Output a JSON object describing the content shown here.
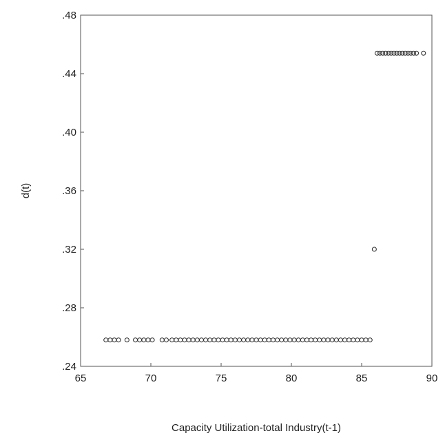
{
  "chart_data": {
    "type": "scatter",
    "title": "",
    "xlabel": "Capacity Utilization-total Industry(t-1)",
    "ylabel": "d(t)",
    "xlim": [
      65,
      90
    ],
    "ylim": [
      0.24,
      0.48
    ],
    "xticks": [
      {
        "value": 65,
        "label": "65"
      },
      {
        "value": 70,
        "label": "70"
      },
      {
        "value": 75,
        "label": "75"
      },
      {
        "value": 80,
        "label": "80"
      },
      {
        "value": 85,
        "label": "85"
      },
      {
        "value": 90,
        "label": "90"
      }
    ],
    "yticks": [
      {
        "value": 0.24,
        "label": ".24"
      },
      {
        "value": 0.28,
        "label": ".28"
      },
      {
        "value": 0.32,
        "label": ".32"
      },
      {
        "value": 0.36,
        "label": ".36"
      },
      {
        "value": 0.4,
        "label": ".40"
      },
      {
        "value": 0.44,
        "label": ".44"
      },
      {
        "value": 0.48,
        "label": ".48"
      }
    ],
    "grid": false,
    "legend": "none",
    "marker_color": "#333333",
    "series": [
      {
        "values": [
          {
            "x": 66.8,
            "y": 0.258
          },
          {
            "x": 67.1,
            "y": 0.258
          },
          {
            "x": 67.4,
            "y": 0.258
          },
          {
            "x": 67.7,
            "y": 0.258
          },
          {
            "x": 68.3,
            "y": 0.258
          },
          {
            "x": 68.9,
            "y": 0.258
          },
          {
            "x": 69.2,
            "y": 0.258
          },
          {
            "x": 69.5,
            "y": 0.258
          },
          {
            "x": 69.8,
            "y": 0.258
          },
          {
            "x": 70.1,
            "y": 0.258
          },
          {
            "x": 70.8,
            "y": 0.258
          },
          {
            "x": 71.1,
            "y": 0.258
          },
          {
            "x": 71.5,
            "y": 0.258
          },
          {
            "x": 71.8,
            "y": 0.258
          },
          {
            "x": 72.1,
            "y": 0.258
          },
          {
            "x": 72.4,
            "y": 0.258
          },
          {
            "x": 72.7,
            "y": 0.258
          },
          {
            "x": 73.0,
            "y": 0.258
          },
          {
            "x": 73.3,
            "y": 0.258
          },
          {
            "x": 73.6,
            "y": 0.258
          },
          {
            "x": 73.9,
            "y": 0.258
          },
          {
            "x": 74.2,
            "y": 0.258
          },
          {
            "x": 74.5,
            "y": 0.258
          },
          {
            "x": 74.8,
            "y": 0.258
          },
          {
            "x": 75.1,
            "y": 0.258
          },
          {
            "x": 75.4,
            "y": 0.258
          },
          {
            "x": 75.7,
            "y": 0.258
          },
          {
            "x": 76.0,
            "y": 0.258
          },
          {
            "x": 76.3,
            "y": 0.258
          },
          {
            "x": 76.6,
            "y": 0.258
          },
          {
            "x": 76.9,
            "y": 0.258
          },
          {
            "x": 77.2,
            "y": 0.258
          },
          {
            "x": 77.5,
            "y": 0.258
          },
          {
            "x": 77.8,
            "y": 0.258
          },
          {
            "x": 78.1,
            "y": 0.258
          },
          {
            "x": 78.4,
            "y": 0.258
          },
          {
            "x": 78.7,
            "y": 0.258
          },
          {
            "x": 79.0,
            "y": 0.258
          },
          {
            "x": 79.3,
            "y": 0.258
          },
          {
            "x": 79.6,
            "y": 0.258
          },
          {
            "x": 79.9,
            "y": 0.258
          },
          {
            "x": 80.2,
            "y": 0.258
          },
          {
            "x": 80.5,
            "y": 0.258
          },
          {
            "x": 80.8,
            "y": 0.258
          },
          {
            "x": 81.1,
            "y": 0.258
          },
          {
            "x": 81.4,
            "y": 0.258
          },
          {
            "x": 81.7,
            "y": 0.258
          },
          {
            "x": 82.0,
            "y": 0.258
          },
          {
            "x": 82.3,
            "y": 0.258
          },
          {
            "x": 82.6,
            "y": 0.258
          },
          {
            "x": 82.9,
            "y": 0.258
          },
          {
            "x": 83.2,
            "y": 0.258
          },
          {
            "x": 83.5,
            "y": 0.258
          },
          {
            "x": 83.8,
            "y": 0.258
          },
          {
            "x": 84.1,
            "y": 0.258
          },
          {
            "x": 84.4,
            "y": 0.258
          },
          {
            "x": 84.7,
            "y": 0.258
          },
          {
            "x": 85.0,
            "y": 0.258
          },
          {
            "x": 85.3,
            "y": 0.258
          },
          {
            "x": 85.6,
            "y": 0.258
          },
          {
            "x": 85.9,
            "y": 0.32
          },
          {
            "x": 86.1,
            "y": 0.454
          },
          {
            "x": 86.3,
            "y": 0.454
          },
          {
            "x": 86.5,
            "y": 0.454
          },
          {
            "x": 86.7,
            "y": 0.454
          },
          {
            "x": 86.9,
            "y": 0.454
          },
          {
            "x": 87.1,
            "y": 0.454
          },
          {
            "x": 87.3,
            "y": 0.454
          },
          {
            "x": 87.5,
            "y": 0.454
          },
          {
            "x": 87.7,
            "y": 0.454
          },
          {
            "x": 87.9,
            "y": 0.454
          },
          {
            "x": 88.1,
            "y": 0.454
          },
          {
            "x": 88.3,
            "y": 0.454
          },
          {
            "x": 88.5,
            "y": 0.454
          },
          {
            "x": 88.7,
            "y": 0.454
          },
          {
            "x": 88.9,
            "y": 0.454
          },
          {
            "x": 89.4,
            "y": 0.454
          }
        ]
      }
    ]
  }
}
